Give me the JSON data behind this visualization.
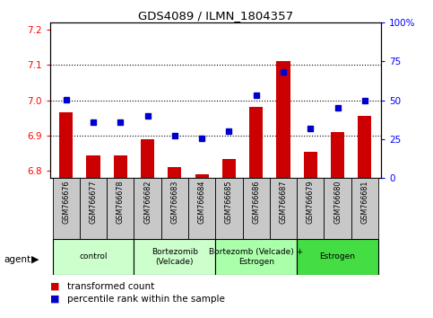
{
  "title": "GDS4089 / ILMN_1804357",
  "samples": [
    "GSM766676",
    "GSM766677",
    "GSM766678",
    "GSM766682",
    "GSM766683",
    "GSM766684",
    "GSM766685",
    "GSM766686",
    "GSM766687",
    "GSM766679",
    "GSM766680",
    "GSM766681"
  ],
  "red_values": [
    6.965,
    6.845,
    6.845,
    6.89,
    6.81,
    6.79,
    6.835,
    6.98,
    7.11,
    6.855,
    6.91,
    6.955
  ],
  "blue_values": [
    50.5,
    36.0,
    36.0,
    40.0,
    27.0,
    25.5,
    30.0,
    53.0,
    68.0,
    32.0,
    45.0,
    50.0
  ],
  "ylim_left": [
    6.78,
    7.22
  ],
  "ylim_right": [
    0,
    100
  ],
  "yticks_left": [
    6.8,
    6.9,
    7.0,
    7.1,
    7.2
  ],
  "yticks_right": [
    0,
    25,
    50,
    75,
    100
  ],
  "ytick_labels_right": [
    "0",
    "25",
    "50",
    "75",
    "100%"
  ],
  "dotted_lines": [
    6.9,
    7.0,
    7.1
  ],
  "group_labels": [
    "control",
    "Bortezomib\n(Velcade)",
    "Bortezomb (Velcade) +\nEstrogen",
    "Estrogen"
  ],
  "group_ranges": [
    [
      0,
      3
    ],
    [
      3,
      6
    ],
    [
      6,
      9
    ],
    [
      9,
      12
    ]
  ],
  "group_colors": [
    "#ccffcc",
    "#ccffcc",
    "#aaffaa",
    "#44dd44"
  ],
  "bar_color": "#cc0000",
  "dot_color": "#0000cc",
  "bar_width": 0.5,
  "legend_bar_label": "transformed count",
  "legend_dot_label": "percentile rank within the sample",
  "agent_label": "agent"
}
